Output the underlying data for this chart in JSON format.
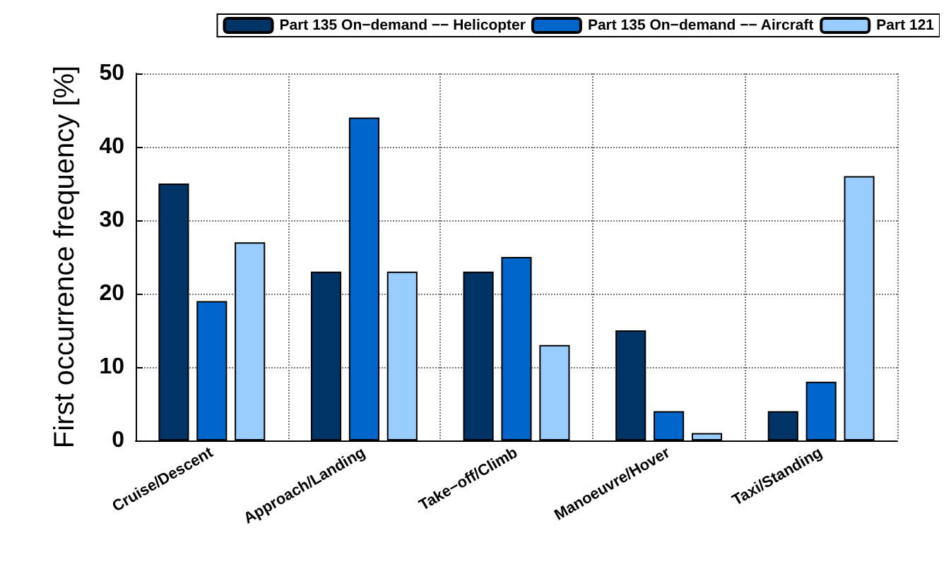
{
  "chart_data": {
    "type": "bar",
    "ylabel": "First occurrence frequency [%]",
    "categories": [
      "Cruise/Descent",
      "Approach/Landing",
      "Take−off/Climb",
      "Manoeuvre/Hover",
      "Taxi/Standing"
    ],
    "series": [
      {
        "name": "Part 135 On−demand −− Helicopter",
        "color": "#003366",
        "values": [
          35,
          23,
          23,
          15,
          4
        ]
      },
      {
        "name": "Part 135 On−demand −− Aircraft",
        "color": "#0066cc",
        "values": [
          19,
          44,
          25,
          4,
          8
        ]
      },
      {
        "name": "Part 121",
        "color": "#99ccff",
        "values": [
          27,
          23,
          13,
          1,
          36
        ]
      }
    ],
    "ylim": [
      0,
      50
    ],
    "yticks": [
      0,
      10,
      20,
      30,
      40,
      50
    ],
    "grid": true,
    "legend": "top"
  }
}
